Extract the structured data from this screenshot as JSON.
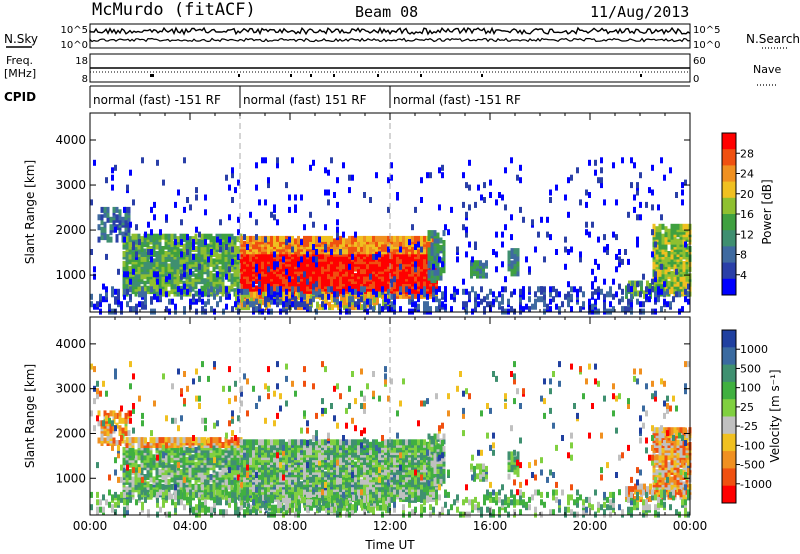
{
  "header": {
    "title": "McMurdo (fitACF)",
    "beam": "Beam 08",
    "date": "11/Aug/2013"
  },
  "side_labels": {
    "nsky": "N.Sky",
    "freq_line1": "Freq.",
    "freq_line2": "[MHz]",
    "cpid": "CPID",
    "nsearch": "N.Search",
    "nave": "Nave"
  },
  "strip_ticks": {
    "noise_left": [
      "10^5",
      "10^0"
    ],
    "noise_right": [
      "10^5",
      "10^0"
    ],
    "freq_left": [
      "18",
      "8"
    ],
    "nave_right": [
      "60",
      "0"
    ]
  },
  "cpid_segments": [
    {
      "label": "normal (fast) -151 RF",
      "start_h": 0,
      "end_h": 6
    },
    {
      "label": "normal (fast) 151 RF",
      "start_h": 6,
      "end_h": 12
    },
    {
      "label": "normal (fast) -151 RF",
      "start_h": 12,
      "end_h": 24
    }
  ],
  "chart_data": [
    {
      "type": "heatmap",
      "name": "power",
      "ylabel": "Slant Range [km]",
      "xlabel": "",
      "xlim_h": [
        0,
        24
      ],
      "ylim_km": [
        180,
        4600
      ],
      "yticks": [
        "1000",
        "2000",
        "3000",
        "4000"
      ],
      "colorbar": {
        "label": "Power [dB]",
        "ticks": [
          "28",
          "24",
          "20",
          "16",
          "12",
          "8",
          "4"
        ],
        "colors": [
          "#0000ff",
          "#2a3fa8",
          "#3f6aa0",
          "#3f8f70",
          "#3fa040",
          "#8fc030",
          "#f0c020",
          "#f09020",
          "#f05010",
          "#ff0000"
        ]
      }
    },
    {
      "type": "heatmap",
      "name": "velocity",
      "ylabel": "Slant Range [km]",
      "xlabel": "Time UT",
      "xlim_h": [
        0,
        24
      ],
      "ylim_km": [
        180,
        4600
      ],
      "yticks": [
        "1000",
        "2000",
        "3000",
        "4000"
      ],
      "xticks": [
        "00:00",
        "04:00",
        "08:00",
        "12:00",
        "16:00",
        "20:00",
        "00:00"
      ],
      "colorbar": {
        "label": "Velocity [m s⁻¹]",
        "ticks": [
          "1000",
          "500",
          "100",
          "25",
          "-25",
          "-100",
          "-500",
          "-1000"
        ],
        "colors": [
          "#2040a0",
          "#3a6aa0",
          "#3f9070",
          "#40b040",
          "#80d040",
          "#c0c0c0",
          "#f0c020",
          "#f09020",
          "#f05010",
          "#ff0000"
        ]
      }
    }
  ]
}
